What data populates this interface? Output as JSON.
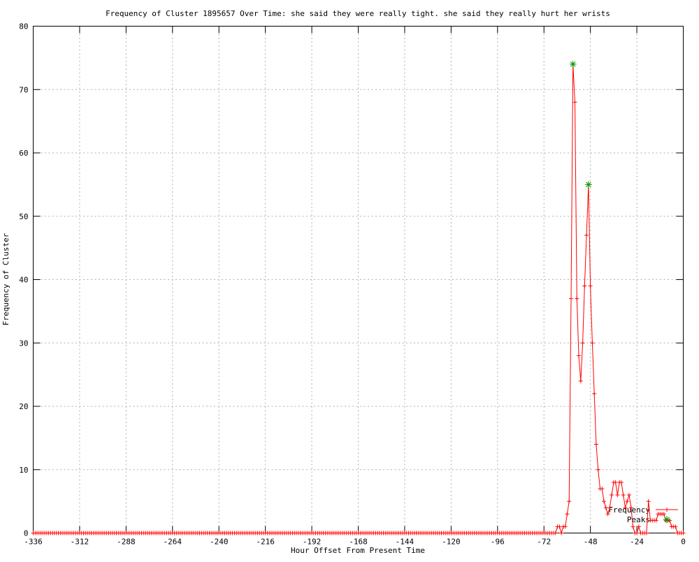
{
  "chart_data": {
    "type": "line",
    "title": "Frequency of Cluster 1895657 Over Time: she said they were really tight. she said they really hurt her wrists",
    "xlabel": "Hour Offset From Present Time",
    "ylabel": "Frequency of Cluster",
    "xlim": [
      -336,
      0
    ],
    "ylim": [
      0,
      80
    ],
    "xticks": [
      -336,
      -312,
      -288,
      -264,
      -240,
      -216,
      -192,
      -168,
      -144,
      -120,
      -96,
      -72,
      -48,
      -24,
      0
    ],
    "yticks": [
      0,
      10,
      20,
      30,
      40,
      50,
      60,
      70,
      80
    ],
    "grid": true,
    "legend_position": "inside-bottom-right",
    "colors": {
      "frequency": "#ff0000",
      "peaks": "#00a000",
      "grid": "#b0b0b0",
      "axis": "#000000",
      "text": "#000000",
      "background": "#ffffff"
    },
    "series": [
      {
        "name": "Frequency",
        "style": "linespoints",
        "marker": "plus",
        "color": "#ff0000",
        "x_start": -336,
        "x_end": 0,
        "x_step": 1,
        "baseline_value": 0,
        "nonzero_points": [
          [
            -65,
            1
          ],
          [
            -64,
            1
          ],
          [
            -63,
            0
          ],
          [
            -62,
            1
          ],
          [
            -61,
            1
          ],
          [
            -60,
            3
          ],
          [
            -59,
            5
          ],
          [
            -58,
            37
          ],
          [
            -57,
            74
          ],
          [
            -56,
            68
          ],
          [
            -55,
            37
          ],
          [
            -54,
            28
          ],
          [
            -53,
            24
          ],
          [
            -52,
            30
          ],
          [
            -51,
            39
          ],
          [
            -50,
            47
          ],
          [
            -49,
            55
          ],
          [
            -48,
            39
          ],
          [
            -47,
            30
          ],
          [
            -46,
            22
          ],
          [
            -45,
            14
          ],
          [
            -44,
            10
          ],
          [
            -43,
            7
          ],
          [
            -42,
            7
          ],
          [
            -41,
            5
          ],
          [
            -40,
            4
          ],
          [
            -39,
            3
          ],
          [
            -38,
            4
          ],
          [
            -37,
            6
          ],
          [
            -36,
            8
          ],
          [
            -35,
            8
          ],
          [
            -34,
            6
          ],
          [
            -33,
            8
          ],
          [
            -32,
            8
          ],
          [
            -31,
            6
          ],
          [
            -30,
            4
          ],
          [
            -29,
            5
          ],
          [
            -28,
            6
          ],
          [
            -27,
            4
          ],
          [
            -26,
            1
          ],
          [
            -25,
            0
          ],
          [
            -24,
            0
          ],
          [
            -23,
            1
          ],
          [
            -22,
            0
          ],
          [
            -21,
            0
          ],
          [
            -20,
            0
          ],
          [
            -19,
            0
          ],
          [
            -18,
            5
          ],
          [
            -17,
            2
          ],
          [
            -16,
            2
          ],
          [
            -15,
            2
          ],
          [
            -14,
            2
          ],
          [
            -13,
            3
          ],
          [
            -12,
            3
          ],
          [
            -11,
            3
          ],
          [
            -10,
            3
          ],
          [
            -9,
            2
          ],
          [
            -8,
            2
          ],
          [
            -7,
            2
          ],
          [
            -6,
            1
          ],
          [
            -5,
            1
          ],
          [
            -4,
            1
          ],
          [
            -3,
            0
          ],
          [
            -2,
            0
          ],
          [
            -1,
            0
          ],
          [
            0,
            0
          ]
        ]
      },
      {
        "name": "Peaks",
        "style": "points",
        "marker": "asterisk",
        "color": "#00a000",
        "points": [
          [
            -57,
            74
          ],
          [
            -49,
            55
          ]
        ]
      }
    ]
  }
}
